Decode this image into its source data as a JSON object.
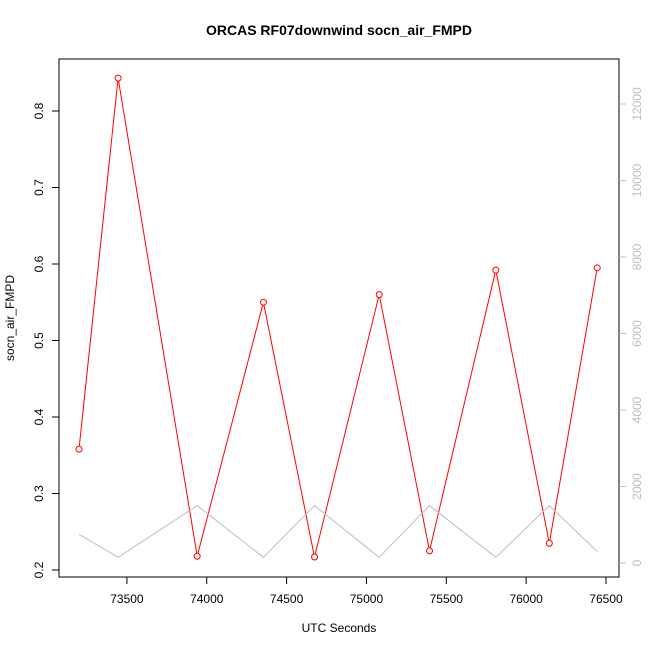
{
  "chart_data": {
    "type": "line",
    "title": "ORCAS RF07downwind socn_air_FMPD",
    "xlabel": "UTC Seconds",
    "ylabel": "socn_air_FMPD",
    "xlim": [
      73200,
      76450
    ],
    "ylim": [
      0.2,
      0.86
    ],
    "y2lim": [
      0,
      13000
    ],
    "x_ticks": [
      73500,
      74000,
      74500,
      75000,
      75500,
      76000,
      76500
    ],
    "y_ticks": [
      0.2,
      0.3,
      0.4,
      0.5,
      0.6,
      0.7,
      0.8
    ],
    "y2_ticks": [
      0,
      2000,
      4000,
      6000,
      8000,
      10000,
      12000
    ],
    "grid": false,
    "series": [
      {
        "axis": "left",
        "color": "#ff0000",
        "style": "line+points",
        "x": [
          73200,
          73445,
          73940,
          74355,
          74675,
          75080,
          75395,
          75810,
          76145,
          76445
        ],
        "y": [
          0.358,
          0.843,
          0.218,
          0.55,
          0.217,
          0.56,
          0.225,
          0.592,
          0.235,
          0.595
        ]
      },
      {
        "axis": "right",
        "color": "#bebebe",
        "style": "line",
        "x": [
          73200,
          73445,
          73940,
          74355,
          74675,
          75080,
          75395,
          75810,
          76145,
          76445
        ],
        "y": [
          750,
          150,
          1500,
          150,
          1500,
          150,
          1500,
          150,
          1500,
          300
        ]
      }
    ]
  }
}
